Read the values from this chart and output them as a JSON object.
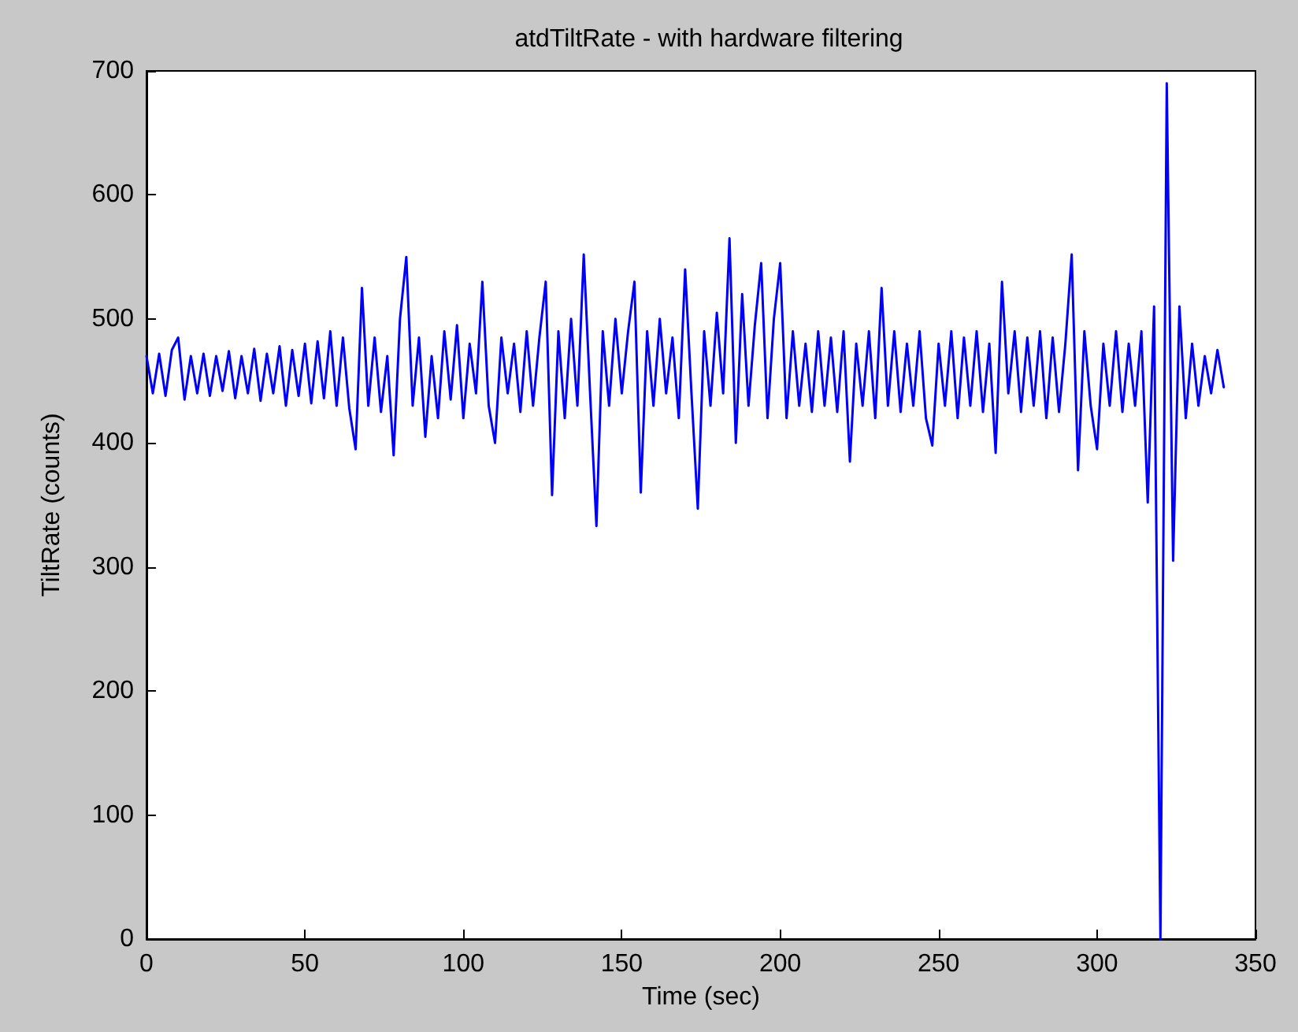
{
  "chart_data": {
    "type": "line",
    "title": "atdTiltRate - with hardware filtering",
    "xlabel": "Time (sec)",
    "ylabel": "TiltRate (counts)",
    "xlim": [
      0,
      350
    ],
    "xticks": [
      0,
      50,
      100,
      150,
      200,
      250,
      300,
      350
    ],
    "ylim": [
      0,
      700
    ],
    "yticks": [
      0,
      100,
      200,
      300,
      400,
      500,
      600,
      700
    ],
    "grid": false,
    "marker": "none",
    "line_style": "solid",
    "series": [
      {
        "color": "#0000ff",
        "x": [
          0,
          2,
          4,
          6,
          8,
          10,
          12,
          14,
          16,
          18,
          20,
          22,
          24,
          26,
          28,
          30,
          32,
          34,
          36,
          38,
          40,
          42,
          44,
          46,
          48,
          50,
          52,
          54,
          56,
          58,
          60,
          62,
          64,
          66,
          68,
          70,
          72,
          74,
          76,
          78,
          80,
          82,
          84,
          86,
          88,
          90,
          92,
          94,
          96,
          98,
          100,
          102,
          104,
          106,
          108,
          110,
          112,
          114,
          116,
          118,
          120,
          122,
          124,
          126,
          128,
          130,
          132,
          134,
          136,
          138,
          140,
          142,
          144,
          146,
          148,
          150,
          152,
          154,
          156,
          158,
          160,
          162,
          164,
          166,
          168,
          170,
          172,
          174,
          176,
          178,
          180,
          182,
          184,
          186,
          188,
          190,
          192,
          194,
          196,
          198,
          200,
          202,
          204,
          206,
          208,
          210,
          212,
          214,
          216,
          218,
          220,
          222,
          224,
          226,
          228,
          230,
          232,
          234,
          236,
          238,
          240,
          242,
          244,
          246,
          248,
          250,
          252,
          254,
          256,
          258,
          260,
          262,
          264,
          266,
          268,
          270,
          272,
          274,
          276,
          278,
          280,
          282,
          284,
          286,
          288,
          290,
          292,
          294,
          296,
          298,
          300,
          302,
          304,
          306,
          308,
          310,
          312,
          314,
          316,
          318,
          320,
          322,
          324,
          326,
          328,
          330,
          332,
          334,
          336,
          338,
          340
        ],
        "values": [
          470,
          440,
          472,
          438,
          475,
          485,
          435,
          470,
          440,
          472,
          438,
          470,
          442,
          474,
          436,
          470,
          440,
          476,
          434,
          472,
          440,
          478,
          430,
          475,
          438,
          480,
          432,
          482,
          436,
          490,
          430,
          485,
          428,
          395,
          525,
          430,
          485,
          425,
          470,
          390,
          500,
          550,
          430,
          485,
          405,
          470,
          420,
          490,
          435,
          495,
          420,
          480,
          440,
          530,
          430,
          400,
          485,
          440,
          480,
          425,
          490,
          430,
          485,
          530,
          358,
          490,
          420,
          500,
          430,
          552,
          440,
          333,
          490,
          430,
          500,
          440,
          490,
          530,
          360,
          490,
          430,
          500,
          440,
          485,
          420,
          540,
          440,
          347,
          490,
          430,
          505,
          440,
          565,
          400,
          520,
          430,
          495,
          545,
          420,
          500,
          545,
          420,
          490,
          430,
          480,
          425,
          490,
          430,
          485,
          425,
          490,
          385,
          480,
          430,
          490,
          420,
          525,
          430,
          490,
          425,
          480,
          430,
          490,
          420,
          398,
          480,
          430,
          490,
          420,
          485,
          430,
          490,
          425,
          480,
          392,
          530,
          440,
          490,
          425,
          485,
          430,
          490,
          420,
          485,
          425,
          480,
          552,
          378,
          490,
          430,
          395,
          480,
          430,
          490,
          425,
          480,
          430,
          490,
          352,
          510,
          0,
          690,
          305,
          510,
          420,
          480,
          430,
          470,
          440,
          475,
          445
        ]
      }
    ]
  }
}
